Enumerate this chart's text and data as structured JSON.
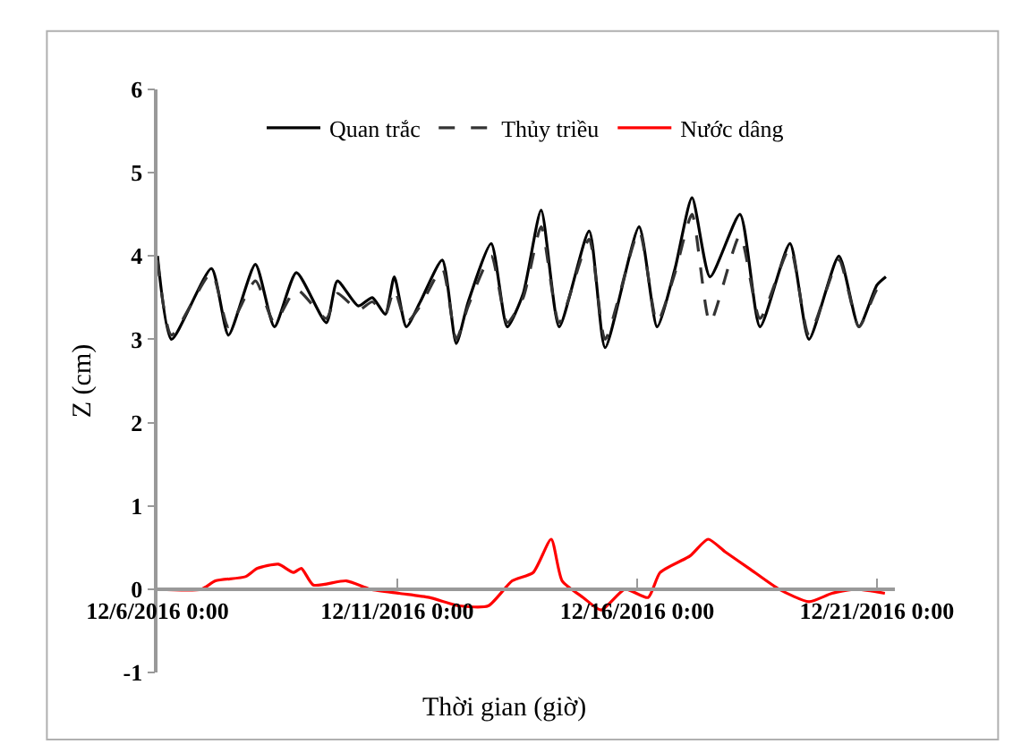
{
  "chart_data": {
    "type": "line",
    "xlabel": "Thời gian (giờ)",
    "ylabel": "Z (cm)",
    "xlim": [
      "2016-12-06T00:00",
      "2016-12-21T09:00"
    ],
    "xticks": [
      {
        "value": "2016-12-06T00:00",
        "label": "12/6/2016 0:00"
      },
      {
        "value": "2016-12-11T00:00",
        "label": "12/11/2016 0:00"
      },
      {
        "value": "2016-12-16T00:00",
        "label": "12/16/2016 0:00"
      },
      {
        "value": "2016-12-21T00:00",
        "label": "12/21/2016 0:00"
      }
    ],
    "ylim": [
      -1,
      6
    ],
    "yticks": [
      -1,
      0,
      1,
      2,
      3,
      4,
      5,
      6
    ],
    "grid": false,
    "legend": "top",
    "marker": "none",
    "series": [
      {
        "name": "Quan trắc",
        "color": "#000000",
        "line_style": "solid",
        "x": [
          "2016-12-06T00:00",
          "2016-12-06T07:00",
          "2016-12-07T03:00",
          "2016-12-07T11:30",
          "2016-12-08T01:00",
          "2016-12-08T10:30",
          "2016-12-08T21:30",
          "2016-12-09T12:30",
          "2016-12-09T18:00",
          "2016-12-10T04:30",
          "2016-12-10T11:30",
          "2016-12-10T18:00",
          "2016-12-10T22:30",
          "2016-12-11T04:30",
          "2016-12-11T11:30",
          "2016-12-11T22:30",
          "2016-12-12T05:30",
          "2016-12-12T11:30",
          "2016-12-12T23:00",
          "2016-12-13T07:00",
          "2016-12-13T15:00",
          "2016-12-14T00:00",
          "2016-12-14T09:00",
          "2016-12-15T00:00",
          "2016-12-15T08:00",
          "2016-12-16T01:00",
          "2016-12-16T10:00",
          "2016-12-16T19:00",
          "2016-12-17T03:30",
          "2016-12-17T12:30",
          "2016-12-18T03:30",
          "2016-12-18T13:30",
          "2016-12-19T04:30",
          "2016-12-19T14:00",
          "2016-12-20T05:00",
          "2016-12-20T15:00",
          "2016-12-21T00:00",
          "2016-12-21T04:30"
        ],
        "values": [
          4.0,
          3.0,
          3.85,
          3.05,
          3.9,
          3.15,
          3.8,
          3.2,
          3.7,
          3.4,
          3.5,
          3.3,
          3.75,
          3.15,
          3.45,
          3.95,
          2.95,
          3.45,
          4.15,
          3.15,
          3.55,
          4.55,
          3.15,
          4.3,
          2.9,
          4.35,
          3.15,
          3.85,
          4.7,
          3.75,
          4.5,
          3.15,
          4.15,
          3.0,
          4.0,
          3.15,
          3.65,
          3.75
        ]
      },
      {
        "name": "Thủy triều",
        "color": "#333333",
        "line_style": "dashed",
        "x": [
          "2016-12-06T00:00",
          "2016-12-06T07:00",
          "2016-12-07T03:00",
          "2016-12-07T11:30",
          "2016-12-08T01:00",
          "2016-12-08T10:30",
          "2016-12-08T21:30",
          "2016-12-09T12:30",
          "2016-12-09T18:00",
          "2016-12-10T04:30",
          "2016-12-10T11:30",
          "2016-12-10T18:00",
          "2016-12-10T22:30",
          "2016-12-11T04:30",
          "2016-12-11T11:30",
          "2016-12-11T22:30",
          "2016-12-12T05:30",
          "2016-12-12T11:30",
          "2016-12-12T23:00",
          "2016-12-13T07:00",
          "2016-12-13T15:00",
          "2016-12-14T00:00",
          "2016-12-14T09:00",
          "2016-12-15T00:00",
          "2016-12-15T08:00",
          "2016-12-16T01:00",
          "2016-12-16T10:00",
          "2016-12-16T19:00",
          "2016-12-17T03:30",
          "2016-12-17T12:30",
          "2016-12-18T03:30",
          "2016-12-18T13:30",
          "2016-12-19T04:30",
          "2016-12-19T14:00",
          "2016-12-20T05:00",
          "2016-12-20T15:00",
          "2016-12-21T00:00",
          "2016-12-21T04:30"
        ],
        "values": [
          3.95,
          3.05,
          3.8,
          3.15,
          3.7,
          3.2,
          3.6,
          3.25,
          3.55,
          3.35,
          3.45,
          3.3,
          3.6,
          3.2,
          3.4,
          3.85,
          3.0,
          3.4,
          4.0,
          3.2,
          3.5,
          4.35,
          3.2,
          4.2,
          3.0,
          4.3,
          3.2,
          3.8,
          4.5,
          3.2,
          4.25,
          3.25,
          4.1,
          3.05,
          3.95,
          3.15,
          3.6,
          3.7
        ]
      },
      {
        "name": "Nước dâng",
        "color": "#ff0000",
        "line_style": "solid",
        "x": [
          "2016-12-06T00:00",
          "2016-12-06T22:00",
          "2016-12-07T05:00",
          "2016-12-07T20:00",
          "2016-12-08T02:00",
          "2016-12-08T12:30",
          "2016-12-08T20:00",
          "2016-12-09T00:00",
          "2016-12-09T06:00",
          "2016-12-09T22:30",
          "2016-12-10T10:30",
          "2016-12-11T01:00",
          "2016-12-11T16:00",
          "2016-12-12T07:00",
          "2016-12-12T21:30",
          "2016-12-13T09:30",
          "2016-12-13T20:00",
          "2016-12-14T05:00",
          "2016-12-14T10:30",
          "2016-12-14T21:00",
          "2016-12-15T06:00",
          "2016-12-15T18:00",
          "2016-12-16T05:30",
          "2016-12-16T11:30",
          "2016-12-17T02:30",
          "2016-12-17T11:30",
          "2016-12-17T20:00",
          "2016-12-18T08:00",
          "2016-12-18T23:00",
          "2016-12-19T14:00",
          "2016-12-20T01:30",
          "2016-12-20T13:30",
          "2016-12-21T04:00"
        ],
        "values": [
          0,
          0,
          0.1,
          0.15,
          0.25,
          0.3,
          0.2,
          0.25,
          0.05,
          0.1,
          0,
          -0.05,
          -0.1,
          -0.2,
          -0.2,
          0.1,
          0.2,
          0.6,
          0.1,
          -0.1,
          -0.25,
          0,
          -0.1,
          0.2,
          0.4,
          0.6,
          0.45,
          0.25,
          0,
          -0.15,
          -0.05,
          0,
          -0.05
        ]
      }
    ]
  }
}
